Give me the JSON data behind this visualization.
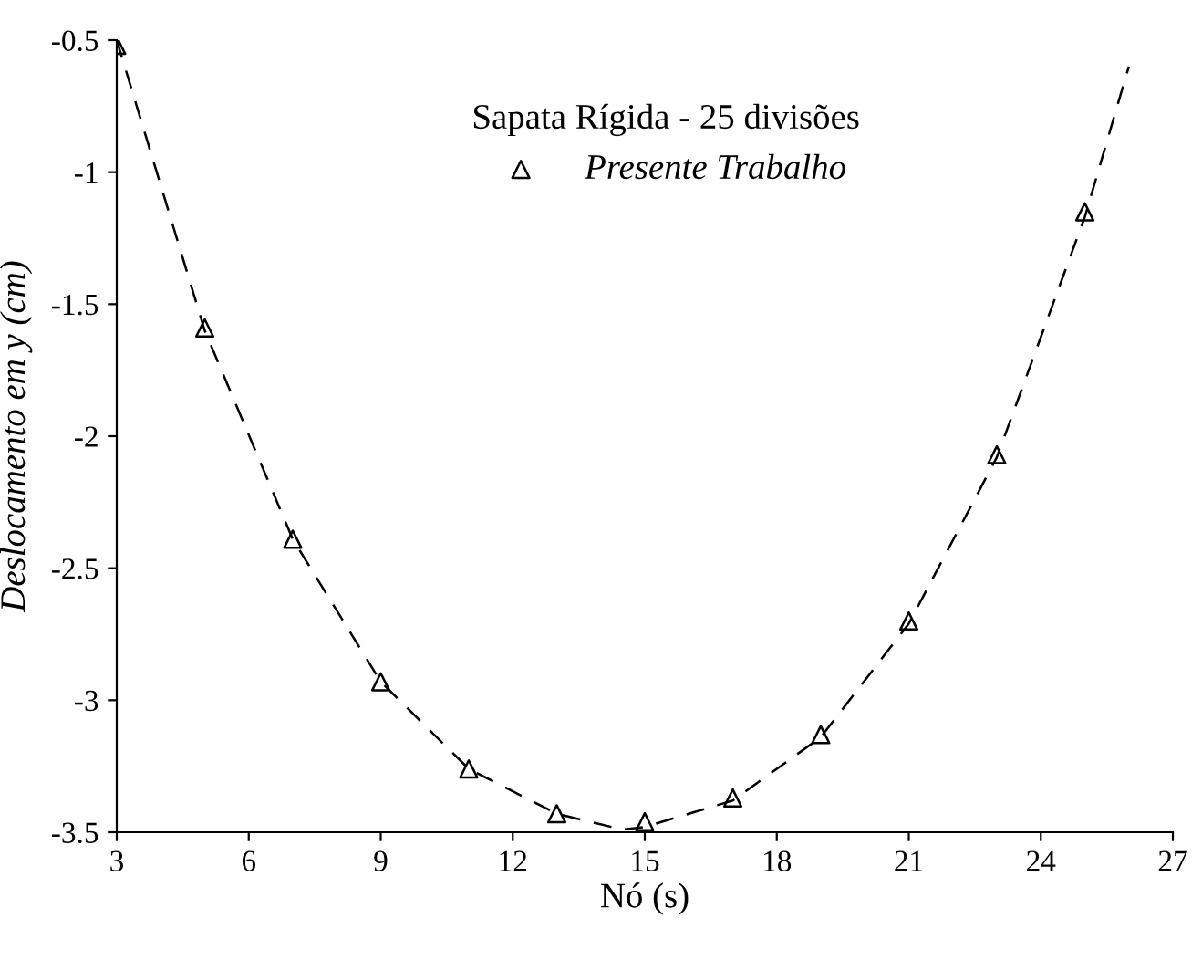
{
  "chart_data": {
    "type": "line",
    "xlabel": "Nó (s)",
    "ylabel": "Deslocamento em y (cm)",
    "legend_title": "Sapata Rígida - 25 divisões",
    "legend": "top",
    "grid": false,
    "xlim": [
      3,
      27
    ],
    "xticks": [
      3,
      6,
      9,
      12,
      15,
      18,
      21,
      24,
      27
    ],
    "ylim": [
      -3.5,
      -0.5
    ],
    "yticks": [
      -3.5,
      -3,
      -2.5,
      -2,
      -1.5,
      -1,
      -0.5
    ],
    "series": [
      {
        "color": "#000000",
        "line_style": "dashed",
        "marker": "none",
        "x": [
          3,
          5,
          7,
          9,
          11,
          13,
          14.5,
          15,
          17,
          19,
          21,
          23,
          25,
          26
        ],
        "values": [
          -0.5,
          -1.6,
          -2.39,
          -2.93,
          -3.26,
          -3.43,
          -3.49,
          -3.48,
          -3.38,
          -3.14,
          -2.71,
          -2.08,
          -1.17,
          -0.6
        ]
      },
      {
        "type": "scatter",
        "name": "Presente Trabalho",
        "color": "#000000",
        "marker": "triangle",
        "x": [
          3,
          5,
          7,
          9,
          11,
          13,
          15,
          17,
          19,
          21,
          23,
          25
        ],
        "values": [
          -0.52,
          -1.59,
          -2.39,
          -2.93,
          -3.26,
          -3.43,
          -3.46,
          -3.37,
          -3.13,
          -2.7,
          -2.07,
          -1.15
        ]
      }
    ]
  }
}
